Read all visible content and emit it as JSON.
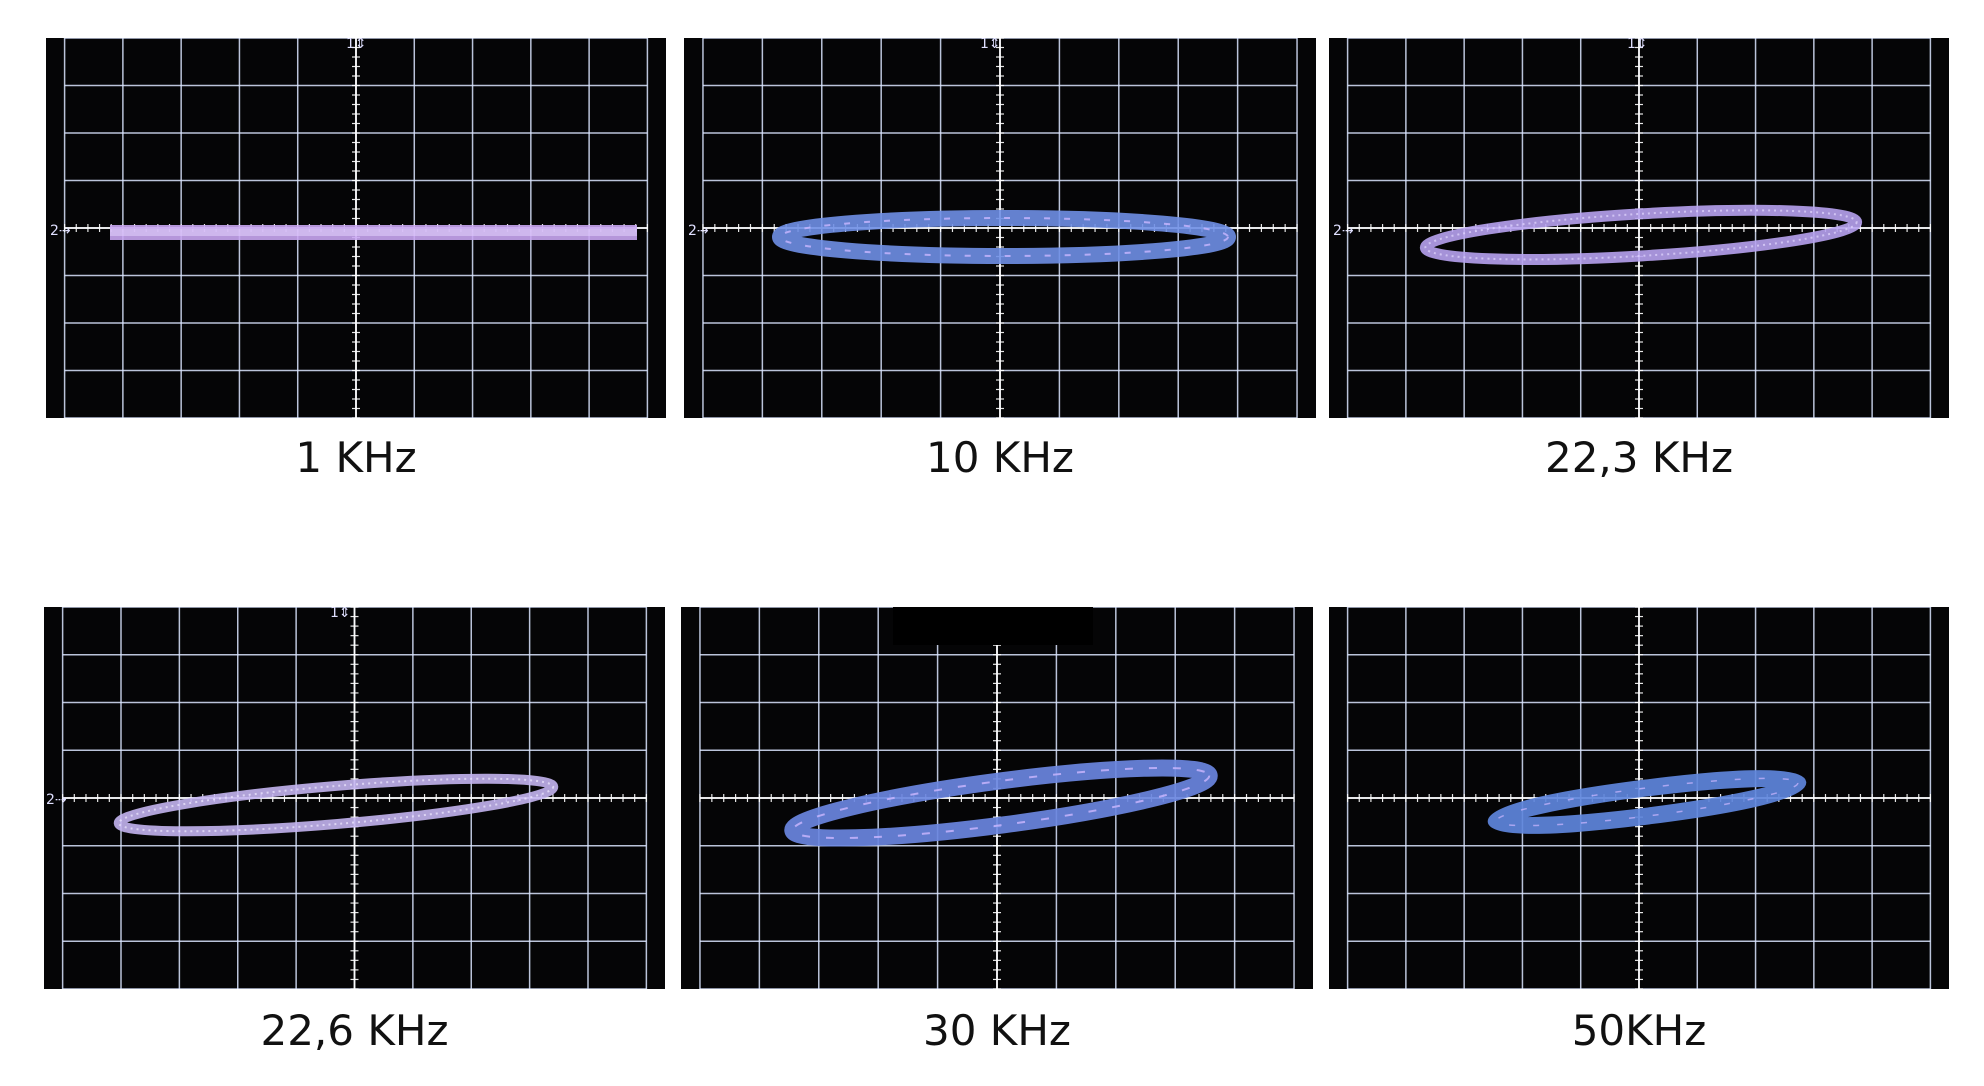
{
  "panels": [
    {
      "label": "1 KHz",
      "trace_color": "#c9a6f2"
    },
    {
      "label": "10 KHz",
      "trace_color": "#6f8fe6"
    },
    {
      "label": "22,3 KHz",
      "trace_color": "#b7a2ef"
    },
    {
      "label": "22,6 KHz",
      "trace_color": "#c3b4f0"
    },
    {
      "label": "30 KHz",
      "trace_color": "#6a86e0"
    },
    {
      "label": "50KHz",
      "trace_color": "#5e86dc"
    }
  ],
  "colors": {
    "screen_background": "#050506",
    "grid": "#dbe6ff",
    "grid_center": "#ffffff",
    "caption_text": "#111111"
  },
  "icons": {
    "channel1_marker": "1 arrow marker",
    "channel2_marker": "2 arrow marker"
  }
}
